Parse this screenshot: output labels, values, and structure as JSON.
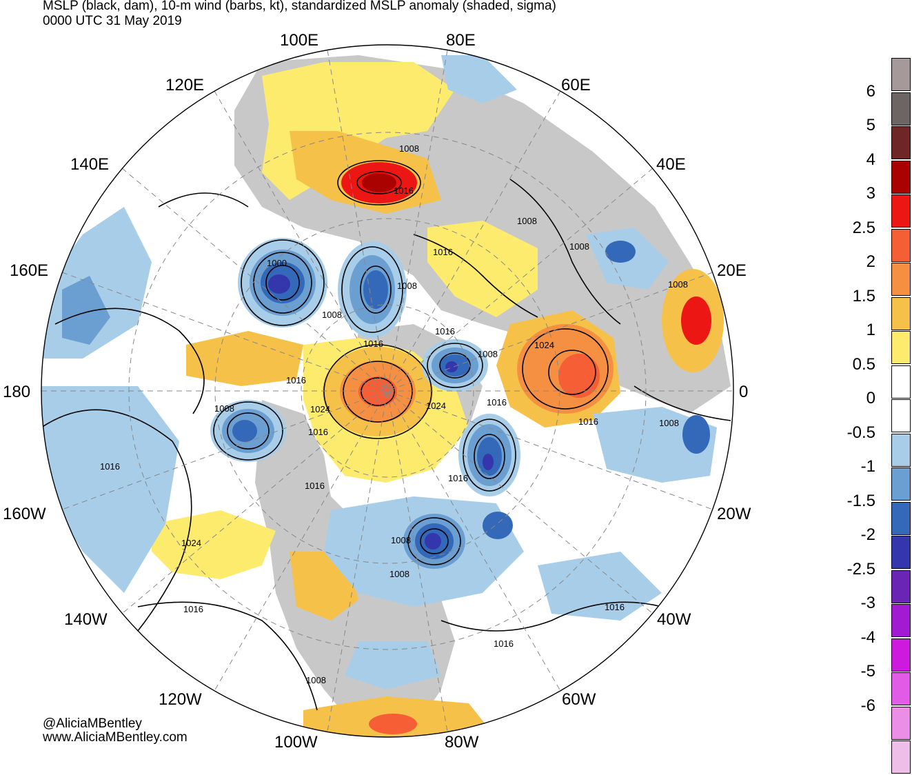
{
  "header": {
    "title": "MSLP (black, dam), 10-m wind (barbs, kt), standardized MSLP anomaly (shaded, sigma)",
    "valid_time": "0000 UTC 31 May 2019"
  },
  "credits": {
    "handle": "@AliciaMBentley",
    "website": "www.AliciaMBentley.com"
  },
  "longitude_labels": [
    "100E",
    "80E",
    "120E",
    "60E",
    "140E",
    "40E",
    "160E",
    "20E",
    "180",
    "0",
    "160W",
    "20W",
    "140W",
    "40W",
    "120W",
    "60W",
    "100W",
    "80W"
  ],
  "isobar_labels": [
    "1008",
    "1016",
    "1008",
    "1016",
    "1000",
    "1008",
    "1008",
    "1016",
    "1016",
    "1024",
    "1008",
    "1016",
    "1008",
    "1024",
    "1024",
    "1016",
    "1016",
    "1016",
    "1008",
    "1016",
    "1016",
    "1008",
    "1008",
    "1016",
    "1024",
    "1016",
    "1016",
    "1016",
    "1008",
    "1008",
    "1008"
  ],
  "colorbar": {
    "colors": [
      "#a59999",
      "#6d6464",
      "#6e2726",
      "#aa0200",
      "#ec1615",
      "#f65e36",
      "#f59042",
      "#f5c149",
      "#fdeb6e",
      "#ffffff",
      "#ffffff",
      "#a8cde8",
      "#6b9ed1",
      "#3468b8",
      "#3436ab",
      "#6b25b4",
      "#a21bd3",
      "#ce1adf",
      "#e15be6",
      "#eb8ee8",
      "#eebde8"
    ],
    "labels": [
      "6",
      "5",
      "4",
      "3",
      "2.5",
      "2",
      "1.5",
      "1",
      "0.5",
      "0",
      "-0.5",
      "-1",
      "-1.5",
      "-2",
      "-2.5",
      "-3",
      "-4",
      "-5",
      "-6"
    ]
  }
}
